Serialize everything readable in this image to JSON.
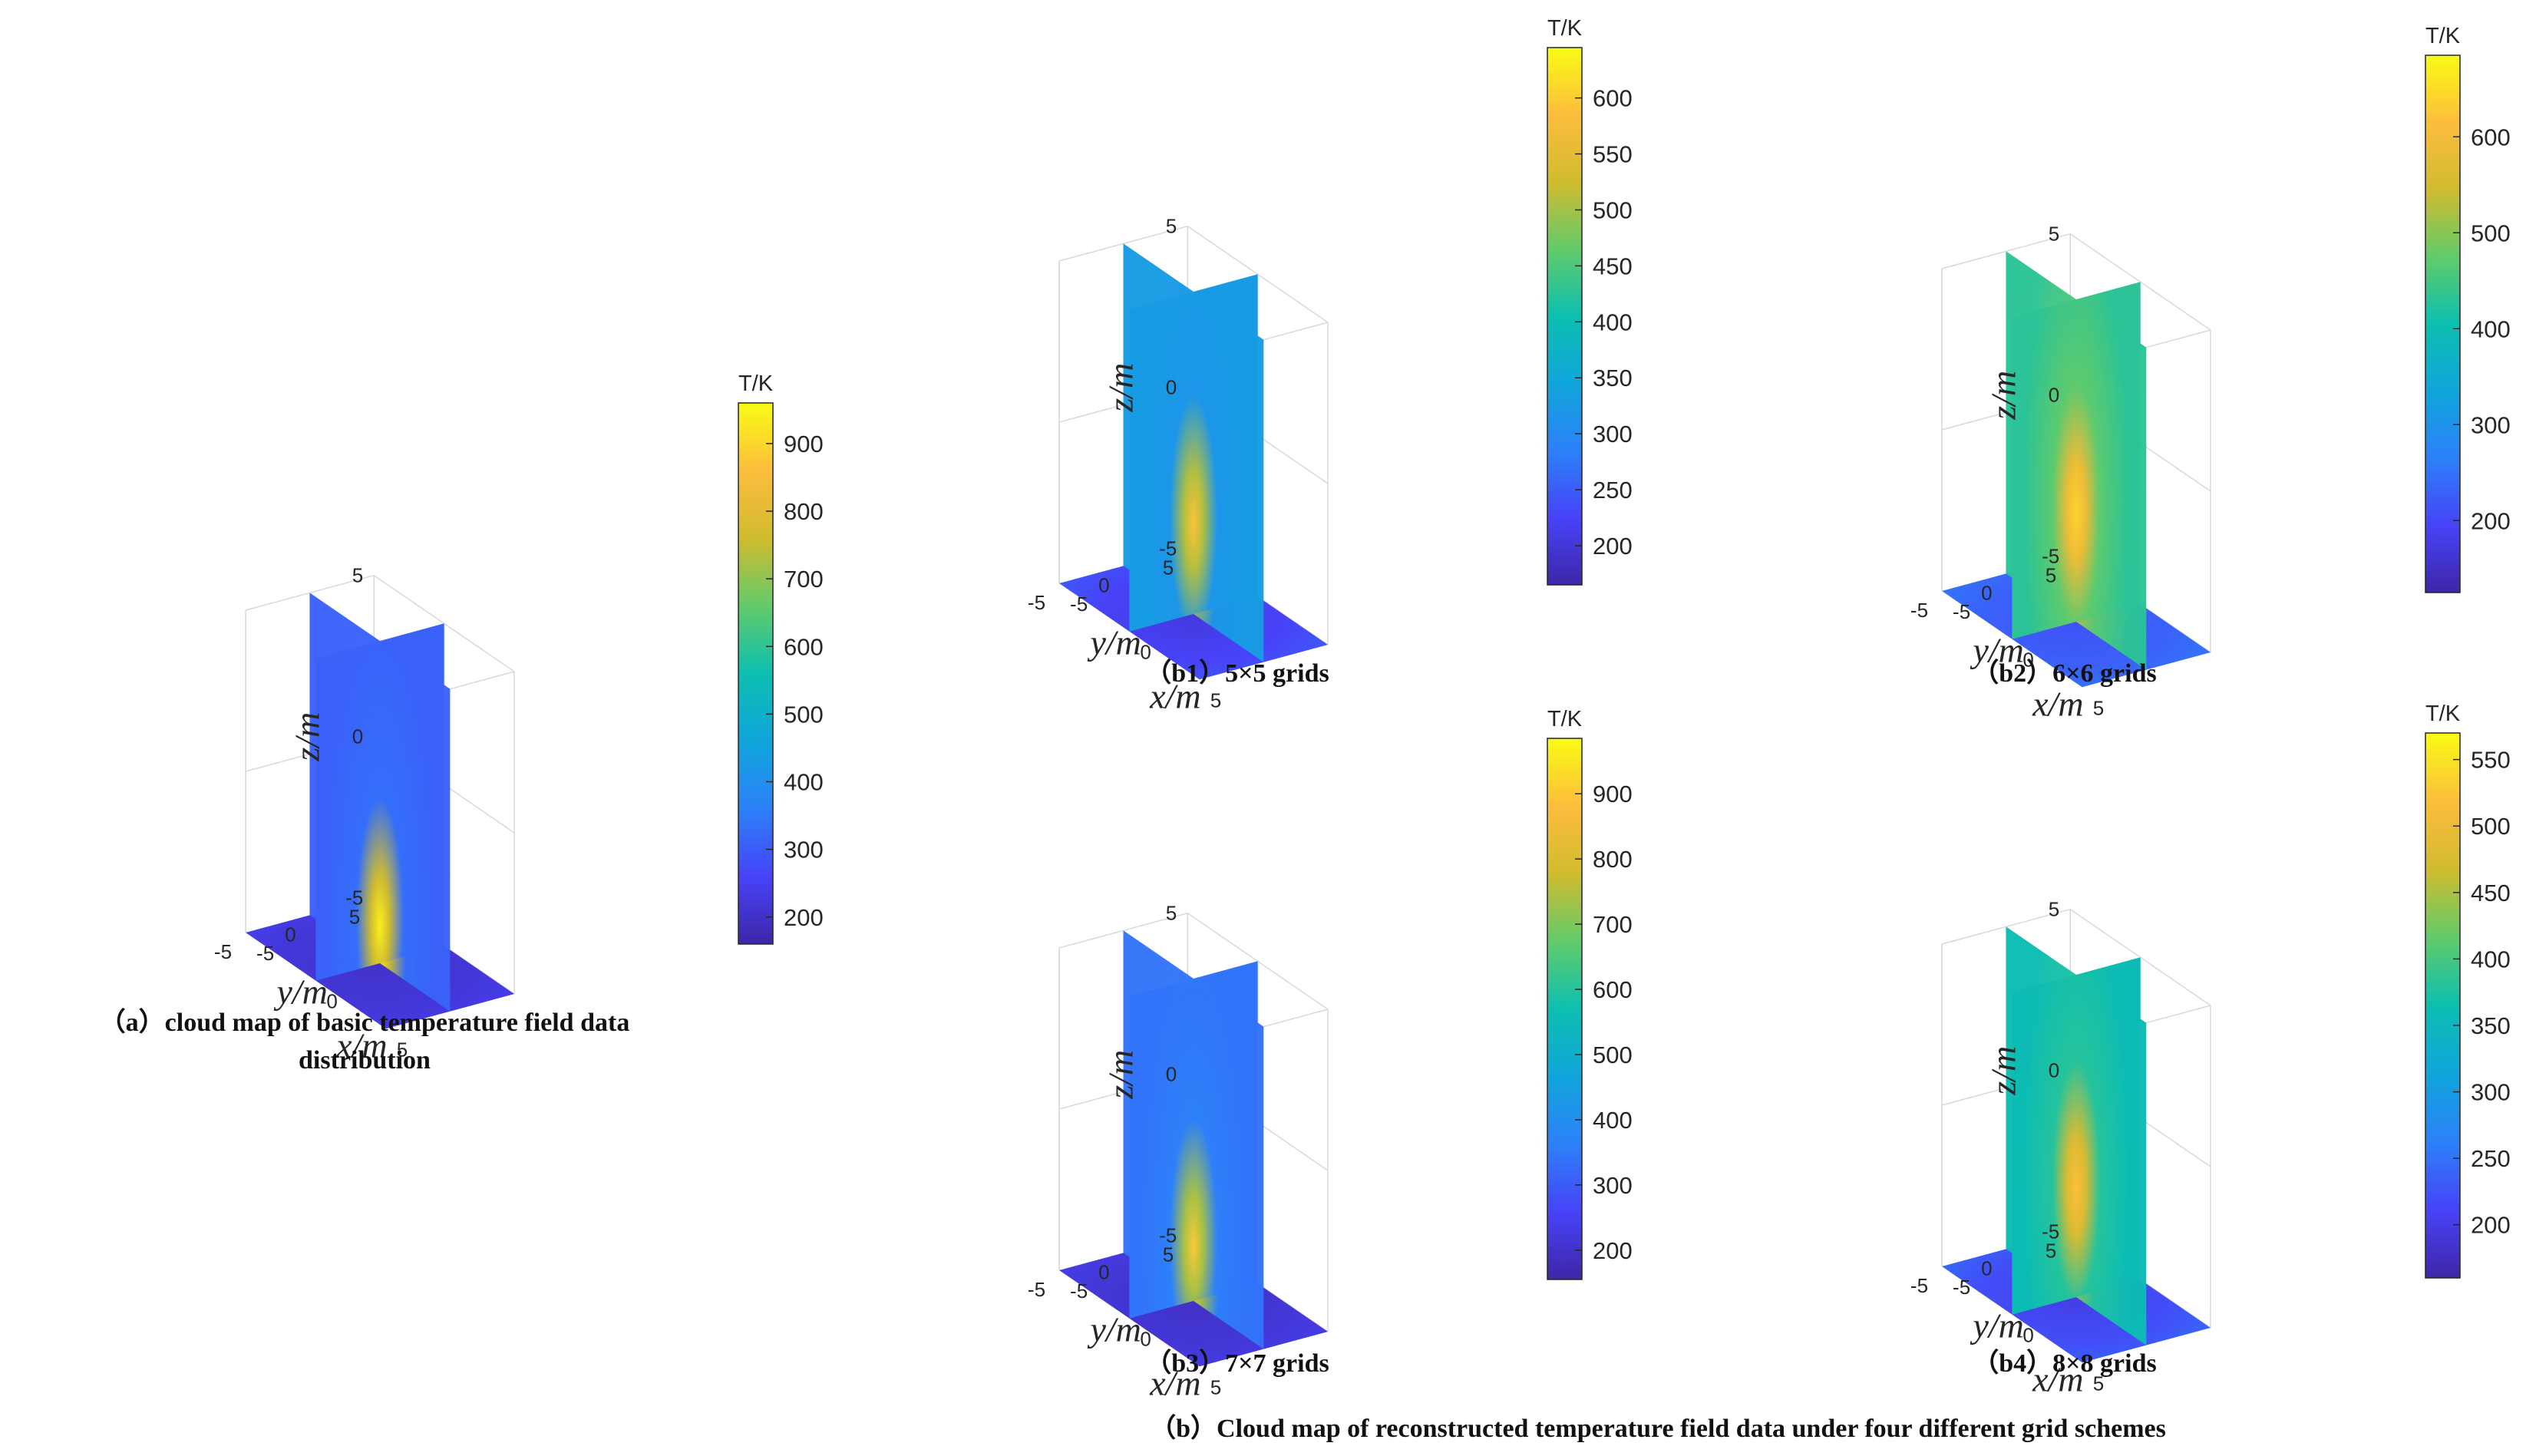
{
  "colormap_stops": [
    "#3e26a8",
    "#4743f8",
    "#2c81f9",
    "#10a5db",
    "#0cbfb0",
    "#62cb6a",
    "#d1bb2f",
    "#fdbd3c",
    "#f9fb15"
  ],
  "figure_caption": "（b）Cloud map of reconstructed temperature field data under four different grid schemes",
  "chart_data": [
    {
      "id": "a",
      "type": "heatmap",
      "title": "（a）cloud map of basic temperature field data",
      "title_line2": "distribution",
      "xlabel": "x/m",
      "ylabel": "y/m",
      "zlabel": "z/m",
      "xlim": [
        -5,
        5
      ],
      "ylim": [
        -5,
        5
      ],
      "zlim": [
        -5,
        5
      ],
      "x_ticks": [
        "-5",
        "0",
        "5"
      ],
      "y_ticks": [
        "-5",
        "0",
        "5"
      ],
      "z_ticks": [
        "-5",
        "0",
        "5"
      ],
      "colorbar_title": "T/K",
      "clim": [
        160,
        960
      ],
      "colorbar_ticks": [
        "200",
        "300",
        "400",
        "500",
        "600",
        "700",
        "800",
        "900"
      ],
      "hotspot": {
        "peak_K": 940,
        "center_z": -3,
        "ambient_K": 330,
        "floor_K": 220,
        "slice_edge_K": 310
      }
    },
    {
      "id": "b1",
      "type": "heatmap",
      "title": "（b1）5×5 grids",
      "xlabel": "x/m",
      "ylabel": "y/m",
      "zlabel": "z/m",
      "xlim": [
        -5,
        5
      ],
      "ylim": [
        -5,
        5
      ],
      "zlim": [
        -5,
        5
      ],
      "x_ticks": [
        "-5",
        "0",
        "5"
      ],
      "y_ticks": [
        "-5",
        "0",
        "5"
      ],
      "z_ticks": [
        "-5",
        "0",
        "5"
      ],
      "colorbar_title": "T/K",
      "clim": [
        165,
        645
      ],
      "colorbar_ticks": [
        "200",
        "250",
        "300",
        "350",
        "400",
        "450",
        "500",
        "550",
        "600"
      ],
      "hotspot": {
        "peak_K": 590,
        "center_z": -1.5,
        "ambient_K": 320,
        "floor_K": 225,
        "slice_edge_K": 330
      }
    },
    {
      "id": "b2",
      "type": "heatmap",
      "title": "（b2）6×6 grids",
      "xlabel": "x/m",
      "ylabel": "y/m",
      "zlabel": "z/m",
      "xlim": [
        -5,
        5
      ],
      "ylim": [
        -5,
        5
      ],
      "zlim": [
        -5,
        5
      ],
      "x_ticks": [
        "-5",
        "0",
        "5"
      ],
      "y_ticks": [
        "-5",
        "0",
        "5"
      ],
      "z_ticks": [
        "-5",
        "0",
        "5"
      ],
      "colorbar_title": "T/K",
      "clim": [
        125,
        685
      ],
      "colorbar_ticks": [
        "200",
        "300",
        "400",
        "500",
        "600"
      ],
      "hotspot": {
        "peak_K": 640,
        "center_z": -1,
        "ambient_K": 470,
        "floor_K": 230,
        "slice_edge_K": 430
      }
    },
    {
      "id": "b3",
      "type": "heatmap",
      "title": "（b3）7×7 grids",
      "xlabel": "x/m",
      "ylabel": "y/m",
      "zlabel": "z/m",
      "xlim": [
        -5,
        5
      ],
      "ylim": [
        -5,
        5
      ],
      "zlim": [
        -5,
        5
      ],
      "x_ticks": [
        "-5",
        "0",
        "5"
      ],
      "y_ticks": [
        "-5",
        "0",
        "5"
      ],
      "z_ticks": [
        "-5",
        "0",
        "5"
      ],
      "colorbar_title": "T/K",
      "clim": [
        155,
        985
      ],
      "colorbar_ticks": [
        "200",
        "300",
        "400",
        "500",
        "600",
        "700",
        "800",
        "900"
      ],
      "hotspot": {
        "peak_K": 900,
        "center_z": -2.5,
        "ambient_K": 360,
        "floor_K": 215,
        "slice_edge_K": 340
      }
    },
    {
      "id": "b4",
      "type": "heatmap",
      "title": "（b4）8×8 grids",
      "xlabel": "x/m",
      "ylabel": "y/m",
      "zlabel": "z/m",
      "xlim": [
        -5,
        5
      ],
      "ylim": [
        -5,
        5
      ],
      "zlim": [
        -5,
        5
      ],
      "x_ticks": [
        "-5",
        "0",
        "5"
      ],
      "y_ticks": [
        "-5",
        "0",
        "5"
      ],
      "z_ticks": [
        "-5",
        "0",
        "5"
      ],
      "colorbar_title": "T/K",
      "clim": [
        160,
        570
      ],
      "colorbar_ticks": [
        "200",
        "250",
        "300",
        "350",
        "400",
        "450",
        "500",
        "550"
      ],
      "hotspot": {
        "peak_K": 520,
        "center_z": -1,
        "ambient_K": 380,
        "floor_K": 220,
        "slice_edge_K": 360
      }
    }
  ]
}
